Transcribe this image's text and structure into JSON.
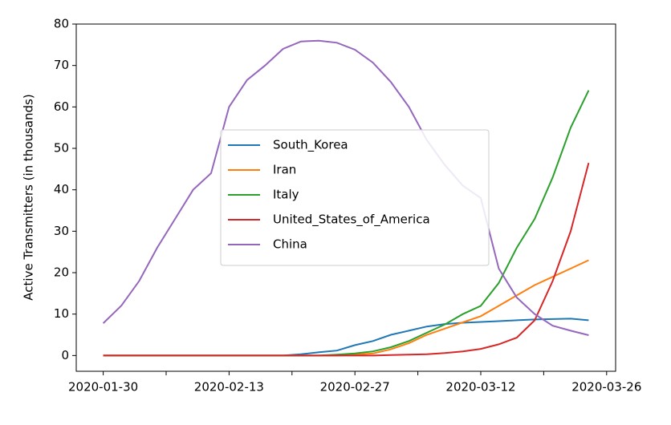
{
  "chart_data": {
    "type": "line",
    "y_label": "Active Transmitters (in thousands)",
    "x": [
      "2020-01-30",
      "2020-02-01",
      "2020-02-03",
      "2020-02-05",
      "2020-02-07",
      "2020-02-09",
      "2020-02-11",
      "2020-02-13",
      "2020-02-15",
      "2020-02-17",
      "2020-02-19",
      "2020-02-21",
      "2020-02-23",
      "2020-02-25",
      "2020-02-27",
      "2020-02-29",
      "2020-03-02",
      "2020-03-04",
      "2020-03-06",
      "2020-03-08",
      "2020-03-10",
      "2020-03-12",
      "2020-03-14",
      "2020-03-16",
      "2020-03-18",
      "2020-03-20",
      "2020-03-22",
      "2020-03-24"
    ],
    "series": [
      {
        "name": "South_Korea",
        "color": "#1f77b4",
        "values": [
          0,
          0,
          0,
          0,
          0,
          0,
          0,
          0,
          0,
          0,
          0,
          0.3,
          0.8,
          1.2,
          2.5,
          3.5,
          5,
          6,
          7,
          7.6,
          7.9,
          8.1,
          8.3,
          8.5,
          8.7,
          8.8,
          8.9,
          8.5
        ]
      },
      {
        "name": "Iran",
        "color": "#ff7f0e",
        "values": [
          0,
          0,
          0,
          0,
          0,
          0,
          0,
          0,
          0,
          0,
          0,
          0,
          0,
          0,
          0.2,
          0.5,
          1.5,
          3,
          5,
          6.5,
          8,
          9.5,
          12,
          14.5,
          17,
          19,
          21,
          23
        ]
      },
      {
        "name": "Italy",
        "color": "#2ca02c",
        "values": [
          0,
          0,
          0,
          0,
          0,
          0,
          0,
          0,
          0,
          0,
          0,
          0,
          0,
          0.2,
          0.5,
          1,
          2,
          3.5,
          5.5,
          7.5,
          10,
          12,
          17.5,
          26,
          33,
          43,
          55,
          64
        ]
      },
      {
        "name": "United_States_of_America",
        "color": "#d62728",
        "values": [
          0,
          0,
          0,
          0,
          0,
          0,
          0,
          0,
          0,
          0,
          0,
          0,
          0,
          0,
          0,
          0,
          0.1,
          0.2,
          0.3,
          0.6,
          1,
          1.6,
          2.7,
          4.3,
          8.5,
          18,
          30,
          46.5
        ]
      },
      {
        "name": "China",
        "color": "#9467bd",
        "values": [
          7.8,
          12,
          18,
          26,
          33,
          40,
          44,
          60,
          66.5,
          70,
          74,
          75.8,
          76,
          75.5,
          73.8,
          70.7,
          66,
          60,
          52,
          46,
          41,
          38,
          21,
          14,
          10,
          7.2,
          6,
          4.9
        ]
      }
    ],
    "xlim": [
      "2020-01-27",
      "2020-03-27"
    ],
    "xticks": [
      "2020-01-30",
      "2020-02-13",
      "2020-02-27",
      "2020-03-12",
      "2020-03-26"
    ],
    "ylim": [
      -3.8,
      80
    ],
    "yticks": [
      0,
      10,
      20,
      30,
      40,
      50,
      60,
      70,
      80
    ],
    "grid": false,
    "legend": "center"
  }
}
